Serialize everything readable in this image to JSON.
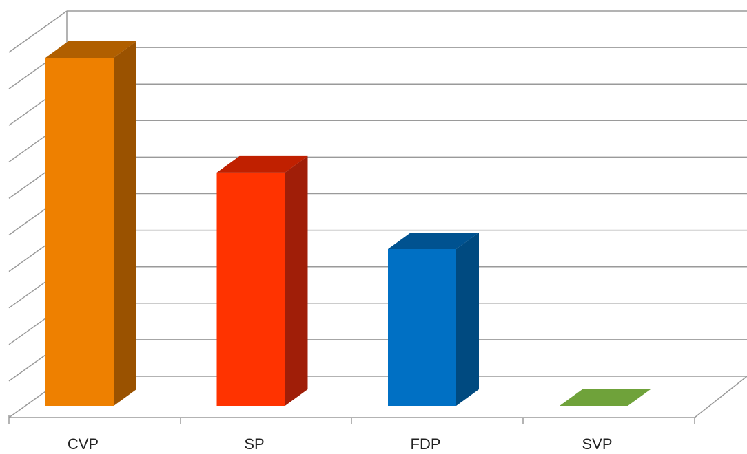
{
  "chart_data": {
    "type": "bar",
    "style": "3d",
    "categories": [
      "CVP",
      "SP",
      "FDP",
      "SVP"
    ],
    "values": [
      9.1,
      6.1,
      4.1,
      0
    ],
    "ylim": [
      0,
      10
    ],
    "grid": true,
    "legend": "none",
    "colors": [
      {
        "front": "#EE8000",
        "top": "#B05F00",
        "side": "#9A5200"
      },
      {
        "front": "#FF3300",
        "top": "#C02000",
        "side": "#A01E08"
      },
      {
        "front": "#0070C4",
        "top": "#005290",
        "side": "#004A80"
      },
      {
        "front": "#6FA23A",
        "top": "#6FA23A",
        "side": "#5A8A2E"
      }
    ]
  }
}
